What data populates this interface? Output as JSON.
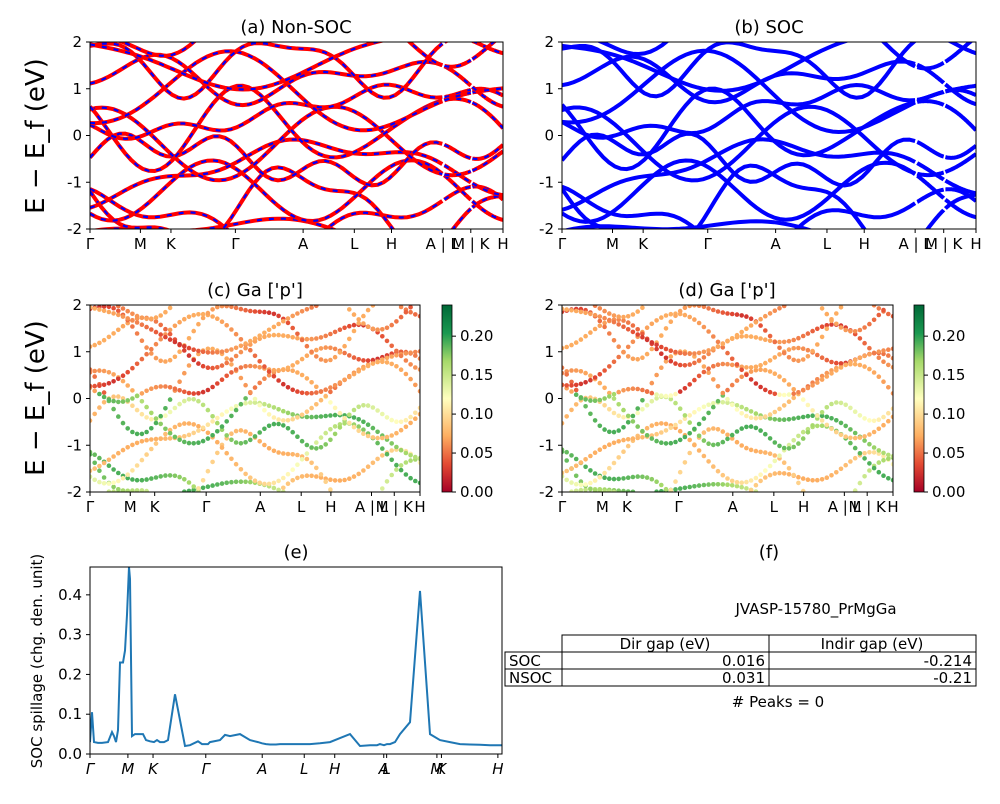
{
  "figure": {
    "ylabel_band": "E − E_f (eV)",
    "kpath_labels": [
      "Γ",
      "M",
      "K",
      "Γ",
      "A",
      "L",
      "H",
      "A | L",
      "M | K",
      "H"
    ],
    "kpath_labels_italic": [
      "Γ",
      "M",
      "K",
      "Γ",
      "A",
      "L",
      "H",
      "A",
      "L",
      "M",
      "K",
      "H"
    ],
    "colorbar_ticks": [
      "0.00",
      "0.05",
      "0.10",
      "0.15",
      "0.20"
    ]
  },
  "panels": {
    "a": {
      "title": "(a) Non-SOC"
    },
    "b": {
      "title": "(b) SOC"
    },
    "c": {
      "title": "(c)  Ga ['p']"
    },
    "d": {
      "title": "(d) Ga ['p']"
    },
    "e": {
      "title": "(e)",
      "ylabel": "SOC spillage (chg. den. unit)"
    },
    "f": {
      "title": "(f)",
      "material": "JVASP-15780_PrMgGa",
      "table": {
        "headers": [
          "Dir gap (eV)",
          "Indir gap (eV)"
        ],
        "rows": [
          {
            "label": "SOC",
            "dir": "0.016",
            "indir": "-0.214"
          },
          {
            "label": "NSOC",
            "dir": "0.031",
            "indir": "-0.21"
          }
        ]
      },
      "peaks": "# Peaks = 0"
    }
  },
  "chart_data": [
    {
      "type": "line",
      "title": "(a) Non-SOC",
      "xlabel": "",
      "ylabel": "E − E_f (eV)",
      "ylim": [
        -2,
        2
      ],
      "yticks": [
        -2,
        -1,
        0,
        1,
        2
      ],
      "xticks": [
        "Γ",
        "M",
        "K",
        "Γ",
        "A",
        "L",
        "H",
        "A | L",
        "M | K",
        "H"
      ],
      "style": "red bands with blue dashed overlay",
      "colors": [
        "#ff0000",
        "#0000ff"
      ],
      "note_values": "band energies approximate"
    },
    {
      "type": "line",
      "title": "(b) SOC",
      "ylabel": "",
      "ylim": [
        -2,
        2
      ],
      "yticks": [
        -2,
        -1,
        0,
        1,
        2
      ],
      "xticks": [
        "Γ",
        "M",
        "K",
        "Γ",
        "A",
        "L",
        "H",
        "A | L",
        "M | K",
        "H"
      ],
      "colors": [
        "#0000ff"
      ]
    },
    {
      "type": "scatter",
      "title": "(c)  Ga ['p']",
      "ylabel": "E − E_f (eV)",
      "ylim": [
        -2,
        2
      ],
      "colorbar": {
        "range": [
          0,
          0.24
        ],
        "ticks": [
          0.0,
          0.05,
          0.1,
          0.15,
          0.2
        ],
        "colormap": "RdYlGn"
      }
    },
    {
      "type": "scatter",
      "title": "(d) Ga ['p']",
      "ylim": [
        -2,
        2
      ],
      "colorbar": {
        "range": [
          0,
          0.24
        ],
        "ticks": [
          0.0,
          0.05,
          0.1,
          0.15,
          0.2
        ],
        "colormap": "RdYlGn"
      }
    },
    {
      "type": "line",
      "title": "(e)",
      "ylabel": "SOC spillage (chg. den. unit)",
      "ylim": [
        0,
        0.47
      ],
      "yticks": [
        0.0,
        0.1,
        0.2,
        0.3,
        0.4
      ],
      "xticks": [
        "Γ",
        "M",
        "K",
        "Γ",
        "A",
        "L",
        "H",
        "A",
        "L",
        "M",
        "K",
        "H"
      ],
      "color": "#1f77b4",
      "x": [
        0,
        2,
        4,
        8,
        12,
        18,
        22,
        24,
        26,
        28,
        30,
        33,
        35,
        37,
        39,
        40,
        42,
        45,
        49,
        53,
        56,
        60,
        64,
        67,
        70,
        74,
        78,
        85,
        95,
        100,
        108,
        112,
        116,
        118,
        120,
        130,
        135,
        140,
        150,
        160,
        168,
        172,
        176,
        180,
        186,
        190,
        200,
        210,
        220,
        230,
        240,
        250,
        260,
        270,
        280,
        283,
        287,
        290,
        294,
        297,
        300,
        305,
        310,
        320,
        330,
        340,
        350,
        360,
        370,
        380,
        390,
        400,
        412
      ],
      "y": [
        0.03,
        0.105,
        0.03,
        0.028,
        0.028,
        0.03,
        0.055,
        0.045,
        0.03,
        0.06,
        0.23,
        0.23,
        0.26,
        0.35,
        0.47,
        0.44,
        0.045,
        0.05,
        0.05,
        0.05,
        0.035,
        0.032,
        0.03,
        0.035,
        0.03,
        0.03,
        0.035,
        0.15,
        0.02,
        0.022,
        0.032,
        0.025,
        0.025,
        0.025,
        0.03,
        0.035,
        0.048,
        0.045,
        0.05,
        0.035,
        0.03,
        0.027,
        0.025,
        0.024,
        0.024,
        0.025,
        0.025,
        0.025,
        0.025,
        0.027,
        0.03,
        0.04,
        0.05,
        0.02,
        0.022,
        0.022,
        0.022,
        0.025,
        0.022,
        0.025,
        0.025,
        0.03,
        0.05,
        0.08,
        0.41,
        0.05,
        0.035,
        0.03,
        0.025,
        0.024,
        0.023,
        0.022,
        0.022
      ]
    }
  ]
}
